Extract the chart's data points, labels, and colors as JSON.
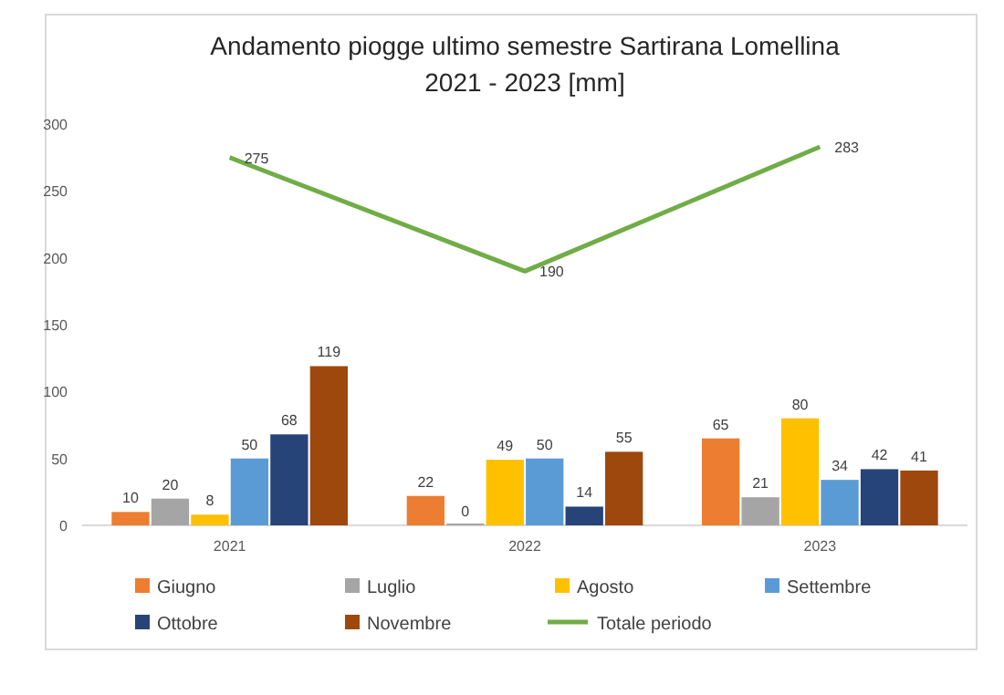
{
  "chart_data": {
    "type": "bar",
    "title": "Andamento piogge ultimo semestre Sartirana Lomellina\n2021 - 2023 [mm]",
    "categories": [
      "2021",
      "2022",
      "2023"
    ],
    "series": [
      {
        "name": "Giugno",
        "color": "#ed7d31",
        "values": [
          10,
          22,
          65
        ]
      },
      {
        "name": "Luglio",
        "color": "#a5a5a5",
        "values": [
          20,
          0,
          21
        ]
      },
      {
        "name": "Agosto",
        "color": "#ffc000",
        "values": [
          8,
          49,
          80
        ]
      },
      {
        "name": "Settembre",
        "color": "#5b9bd5",
        "values": [
          50,
          50,
          34
        ]
      },
      {
        "name": "Ottobre",
        "color": "#264478",
        "values": [
          68,
          14,
          42
        ]
      },
      {
        "name": "Novembre",
        "color": "#9e480e",
        "values": [
          119,
          55,
          41
        ]
      },
      {
        "name": "Totale periodo",
        "type": "line",
        "color": "#70ad47",
        "values": [
          275,
          190,
          283
        ]
      }
    ],
    "ylim": [
      0,
      300
    ],
    "yticks": [
      0,
      50,
      100,
      150,
      200,
      250,
      300
    ],
    "grid": false,
    "legend": "bottom",
    "data_labels": true
  }
}
